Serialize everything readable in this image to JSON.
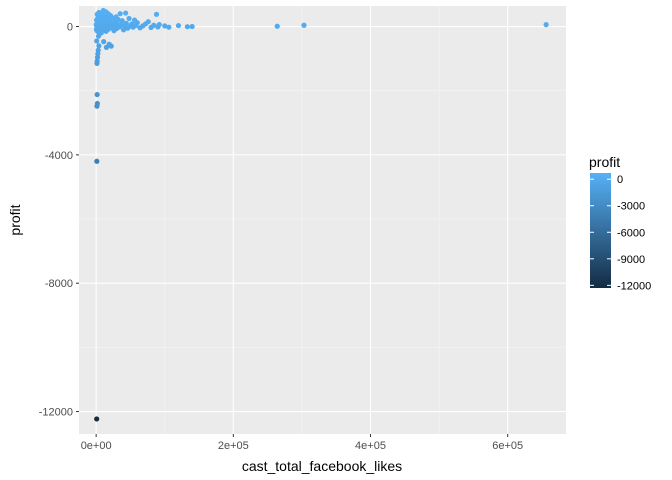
{
  "chart_data": {
    "type": "scatter",
    "title": "",
    "xlabel": "cast_total_facebook_likes",
    "ylabel": "profit",
    "xlim": [
      -25000,
      685000
    ],
    "ylim": [
      -12700,
      640
    ],
    "x_ticks": [
      {
        "value": 0,
        "label": "0e+00"
      },
      {
        "value": 200000,
        "label": "2e+05"
      },
      {
        "value": 400000,
        "label": "4e+05"
      },
      {
        "value": 600000,
        "label": "6e+05"
      }
    ],
    "y_ticks": [
      {
        "value": 0,
        "label": "0"
      },
      {
        "value": -4000,
        "label": "-4000"
      },
      {
        "value": -8000,
        "label": "-8000"
      },
      {
        "value": -12000,
        "label": "-12000"
      }
    ],
    "grid": true,
    "legend": {
      "title": "profit",
      "position": "right",
      "type": "colorbar",
      "range": [
        -12300,
        700
      ],
      "low_color": "#132b43",
      "high_color": "#56b1f7",
      "ticks": [
        {
          "value": 0,
          "label": "0"
        },
        {
          "value": -3000,
          "label": "-3000"
        },
        {
          "value": -6000,
          "label": "-6000"
        },
        {
          "value": -9000,
          "label": "-9000"
        },
        {
          "value": -12000,
          "label": "-12000"
        }
      ]
    },
    "points": [
      {
        "x": 656000,
        "y": 60
      },
      {
        "x": 303000,
        "y": 40
      },
      {
        "x": 264000,
        "y": 10
      },
      {
        "x": 140000,
        "y": 0
      },
      {
        "x": 133000,
        "y": -5
      },
      {
        "x": 120000,
        "y": 30
      },
      {
        "x": 106000,
        "y": -20
      },
      {
        "x": 100000,
        "y": 20
      },
      {
        "x": 92000,
        "y": 60
      },
      {
        "x": 90000,
        "y": -10
      },
      {
        "x": 88000,
        "y": 380
      },
      {
        "x": 84000,
        "y": 40
      },
      {
        "x": 80000,
        "y": -30
      },
      {
        "x": 76000,
        "y": 150
      },
      {
        "x": 72000,
        "y": 80
      },
      {
        "x": 68000,
        "y": 20
      },
      {
        "x": 64000,
        "y": -40
      },
      {
        "x": 60000,
        "y": 120
      },
      {
        "x": 58000,
        "y": 40
      },
      {
        "x": 56000,
        "y": 200
      },
      {
        "x": 54000,
        "y": -20
      },
      {
        "x": 52000,
        "y": 80
      },
      {
        "x": 50000,
        "y": 10
      },
      {
        "x": 48000,
        "y": 250
      },
      {
        "x": 46000,
        "y": -50
      },
      {
        "x": 44000,
        "y": 100
      },
      {
        "x": 43000,
        "y": 420
      },
      {
        "x": 41000,
        "y": 30
      },
      {
        "x": 40000,
        "y": -100
      },
      {
        "x": 38000,
        "y": 180
      },
      {
        "x": 36000,
        "y": 60
      },
      {
        "x": 35000,
        "y": 400
      },
      {
        "x": 34000,
        "y": -10
      },
      {
        "x": 32000,
        "y": 220
      },
      {
        "x": 31000,
        "y": 90
      },
      {
        "x": 30000,
        "y": -60
      },
      {
        "x": 29000,
        "y": 300
      },
      {
        "x": 28000,
        "y": 150
      },
      {
        "x": 27000,
        "y": 20
      },
      {
        "x": 26000,
        "y": -130
      },
      {
        "x": 25000,
        "y": 260
      },
      {
        "x": 24000,
        "y": 100
      },
      {
        "x": 23000,
        "y": 40
      },
      {
        "x": 22000,
        "y": -30
      },
      {
        "x": 21000,
        "y": 340
      },
      {
        "x": 20000,
        "y": 180
      },
      {
        "x": 19000,
        "y": 60
      },
      {
        "x": 18000,
        "y": -80
      },
      {
        "x": 17500,
        "y": 400
      },
      {
        "x": 17000,
        "y": 120
      },
      {
        "x": 16000,
        "y": 250
      },
      {
        "x": 15000,
        "y": 20
      },
      {
        "x": 14500,
        "y": -150
      },
      {
        "x": 14000,
        "y": 460
      },
      {
        "x": 13000,
        "y": 300
      },
      {
        "x": 12500,
        "y": 80
      },
      {
        "x": 12000,
        "y": -40
      },
      {
        "x": 11000,
        "y": 200
      },
      {
        "x": 10500,
        "y": 500
      },
      {
        "x": 10000,
        "y": 140
      },
      {
        "x": 9500,
        "y": -90
      },
      {
        "x": 9000,
        "y": 350
      },
      {
        "x": 8500,
        "y": 60
      },
      {
        "x": 8000,
        "y": 240
      },
      {
        "x": 7500,
        "y": -200
      },
      {
        "x": 7000,
        "y": 420
      },
      {
        "x": 6500,
        "y": 110
      },
      {
        "x": 6000,
        "y": 30
      },
      {
        "x": 5500,
        "y": 300
      },
      {
        "x": 5000,
        "y": -60
      },
      {
        "x": 4500,
        "y": 180
      },
      {
        "x": 4000,
        "y": 440
      },
      {
        "x": 3500,
        "y": -300
      },
      {
        "x": 3000,
        "y": 90
      },
      {
        "x": 2500,
        "y": 260
      },
      {
        "x": 2000,
        "y": -150
      },
      {
        "x": 1500,
        "y": 380
      },
      {
        "x": 1000,
        "y": 0
      },
      {
        "x": 800,
        "y": -450
      },
      {
        "x": 600,
        "y": 200
      },
      {
        "x": 400,
        "y": -100
      },
      {
        "x": 200,
        "y": 60
      },
      {
        "x": 19000,
        "y": -550
      },
      {
        "x": 22000,
        "y": -610
      },
      {
        "x": 15000,
        "y": -650
      },
      {
        "x": 11000,
        "y": -470
      },
      {
        "x": 4000,
        "y": -600
      },
      {
        "x": 3000,
        "y": -740
      },
      {
        "x": 2500,
        "y": -850
      },
      {
        "x": 2000,
        "y": -960
      },
      {
        "x": 1500,
        "y": -1080
      },
      {
        "x": 1200,
        "y": -1150
      },
      {
        "x": 1500,
        "y": -2120
      },
      {
        "x": 1800,
        "y": -2400
      },
      {
        "x": 1200,
        "y": -2480
      },
      {
        "x": 1000,
        "y": -4200
      },
      {
        "x": 800,
        "y": -12230
      }
    ]
  }
}
